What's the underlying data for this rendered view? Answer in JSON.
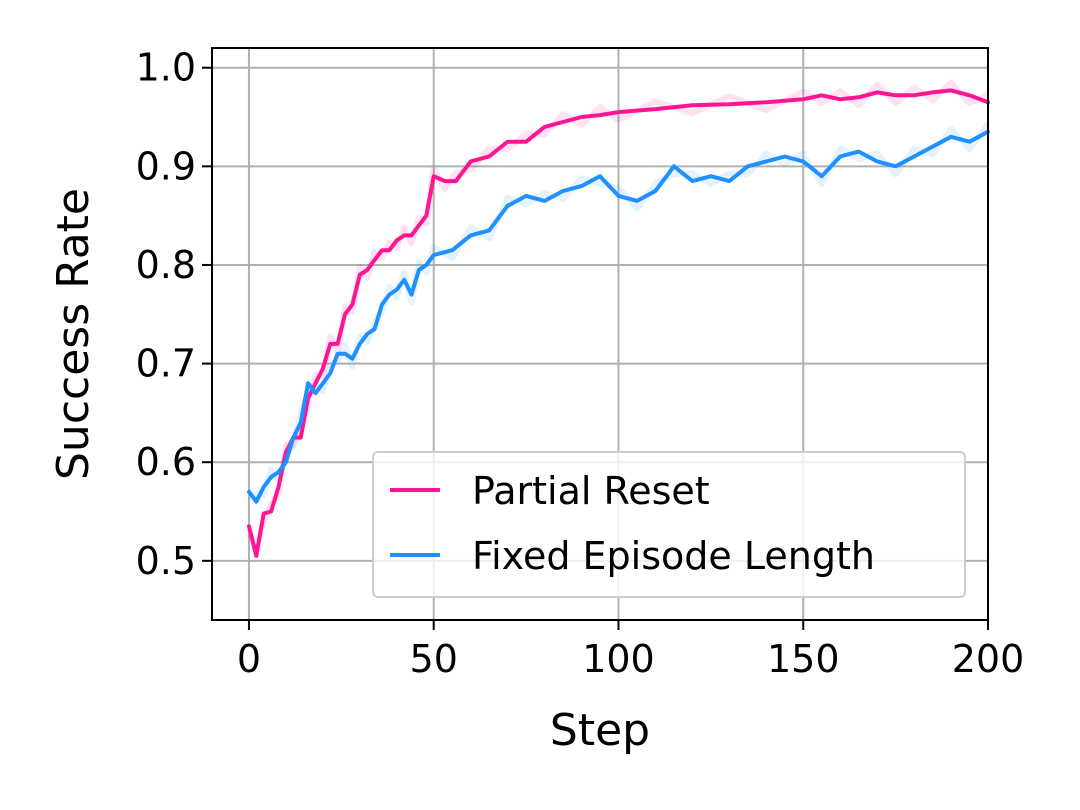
{
  "chart_data": {
    "type": "line",
    "xlabel": "Step",
    "ylabel": "Success Rate",
    "xlim": [
      -10,
      200
    ],
    "ylim": [
      0.44,
      1.02
    ],
    "xticks": [
      0,
      50,
      100,
      150,
      200
    ],
    "xtick_labels": [
      "0",
      "50",
      "100",
      "150",
      "200"
    ],
    "yticks": [
      0.5,
      0.6,
      0.7,
      0.8,
      0.9,
      1.0
    ],
    "ytick_labels": [
      "0.5",
      "0.6",
      "0.7",
      "0.8",
      "0.9",
      "1.0"
    ],
    "grid": true,
    "legend_position": "lower-right",
    "series": [
      {
        "name": "Partial Reset",
        "color": "#ff1493",
        "x": [
          0,
          2,
          4,
          6,
          8,
          10,
          12,
          14,
          16,
          18,
          20,
          22,
          24,
          26,
          28,
          30,
          32,
          34,
          36,
          38,
          40,
          42,
          44,
          46,
          48,
          50,
          53,
          56,
          60,
          65,
          70,
          75,
          80,
          85,
          90,
          95,
          100,
          110,
          120,
          130,
          140,
          150,
          155,
          160,
          165,
          170,
          175,
          180,
          185,
          190,
          195,
          200
        ],
        "y": [
          0.535,
          0.505,
          0.548,
          0.55,
          0.575,
          0.61,
          0.625,
          0.625,
          0.665,
          0.68,
          0.695,
          0.72,
          0.72,
          0.75,
          0.76,
          0.79,
          0.795,
          0.805,
          0.815,
          0.815,
          0.825,
          0.83,
          0.83,
          0.84,
          0.85,
          0.89,
          0.885,
          0.885,
          0.905,
          0.91,
          0.925,
          0.925,
          0.94,
          0.945,
          0.95,
          0.952,
          0.955,
          0.958,
          0.962,
          0.963,
          0.965,
          0.968,
          0.972,
          0.968,
          0.97,
          0.975,
          0.972,
          0.972,
          0.975,
          0.977,
          0.972,
          0.965
        ]
      },
      {
        "name": "Fixed Episode Length",
        "color": "#1e90ff",
        "x": [
          0,
          2,
          4,
          6,
          8,
          10,
          12,
          14,
          16,
          18,
          20,
          22,
          24,
          26,
          28,
          30,
          32,
          34,
          36,
          38,
          40,
          42,
          44,
          46,
          48,
          50,
          55,
          60,
          65,
          70,
          75,
          80,
          85,
          90,
          95,
          100,
          105,
          110,
          115,
          120,
          125,
          130,
          135,
          140,
          145,
          150,
          155,
          160,
          165,
          170,
          175,
          180,
          185,
          190,
          195,
          200
        ],
        "y": [
          0.57,
          0.56,
          0.575,
          0.585,
          0.59,
          0.6,
          0.625,
          0.64,
          0.68,
          0.67,
          0.68,
          0.69,
          0.71,
          0.71,
          0.705,
          0.72,
          0.73,
          0.735,
          0.76,
          0.77,
          0.775,
          0.785,
          0.77,
          0.795,
          0.8,
          0.81,
          0.815,
          0.83,
          0.835,
          0.86,
          0.87,
          0.865,
          0.875,
          0.88,
          0.89,
          0.87,
          0.865,
          0.875,
          0.9,
          0.885,
          0.89,
          0.885,
          0.9,
          0.905,
          0.91,
          0.905,
          0.89,
          0.91,
          0.915,
          0.905,
          0.9,
          0.91,
          0.92,
          0.93,
          0.925,
          0.935
        ]
      }
    ]
  }
}
